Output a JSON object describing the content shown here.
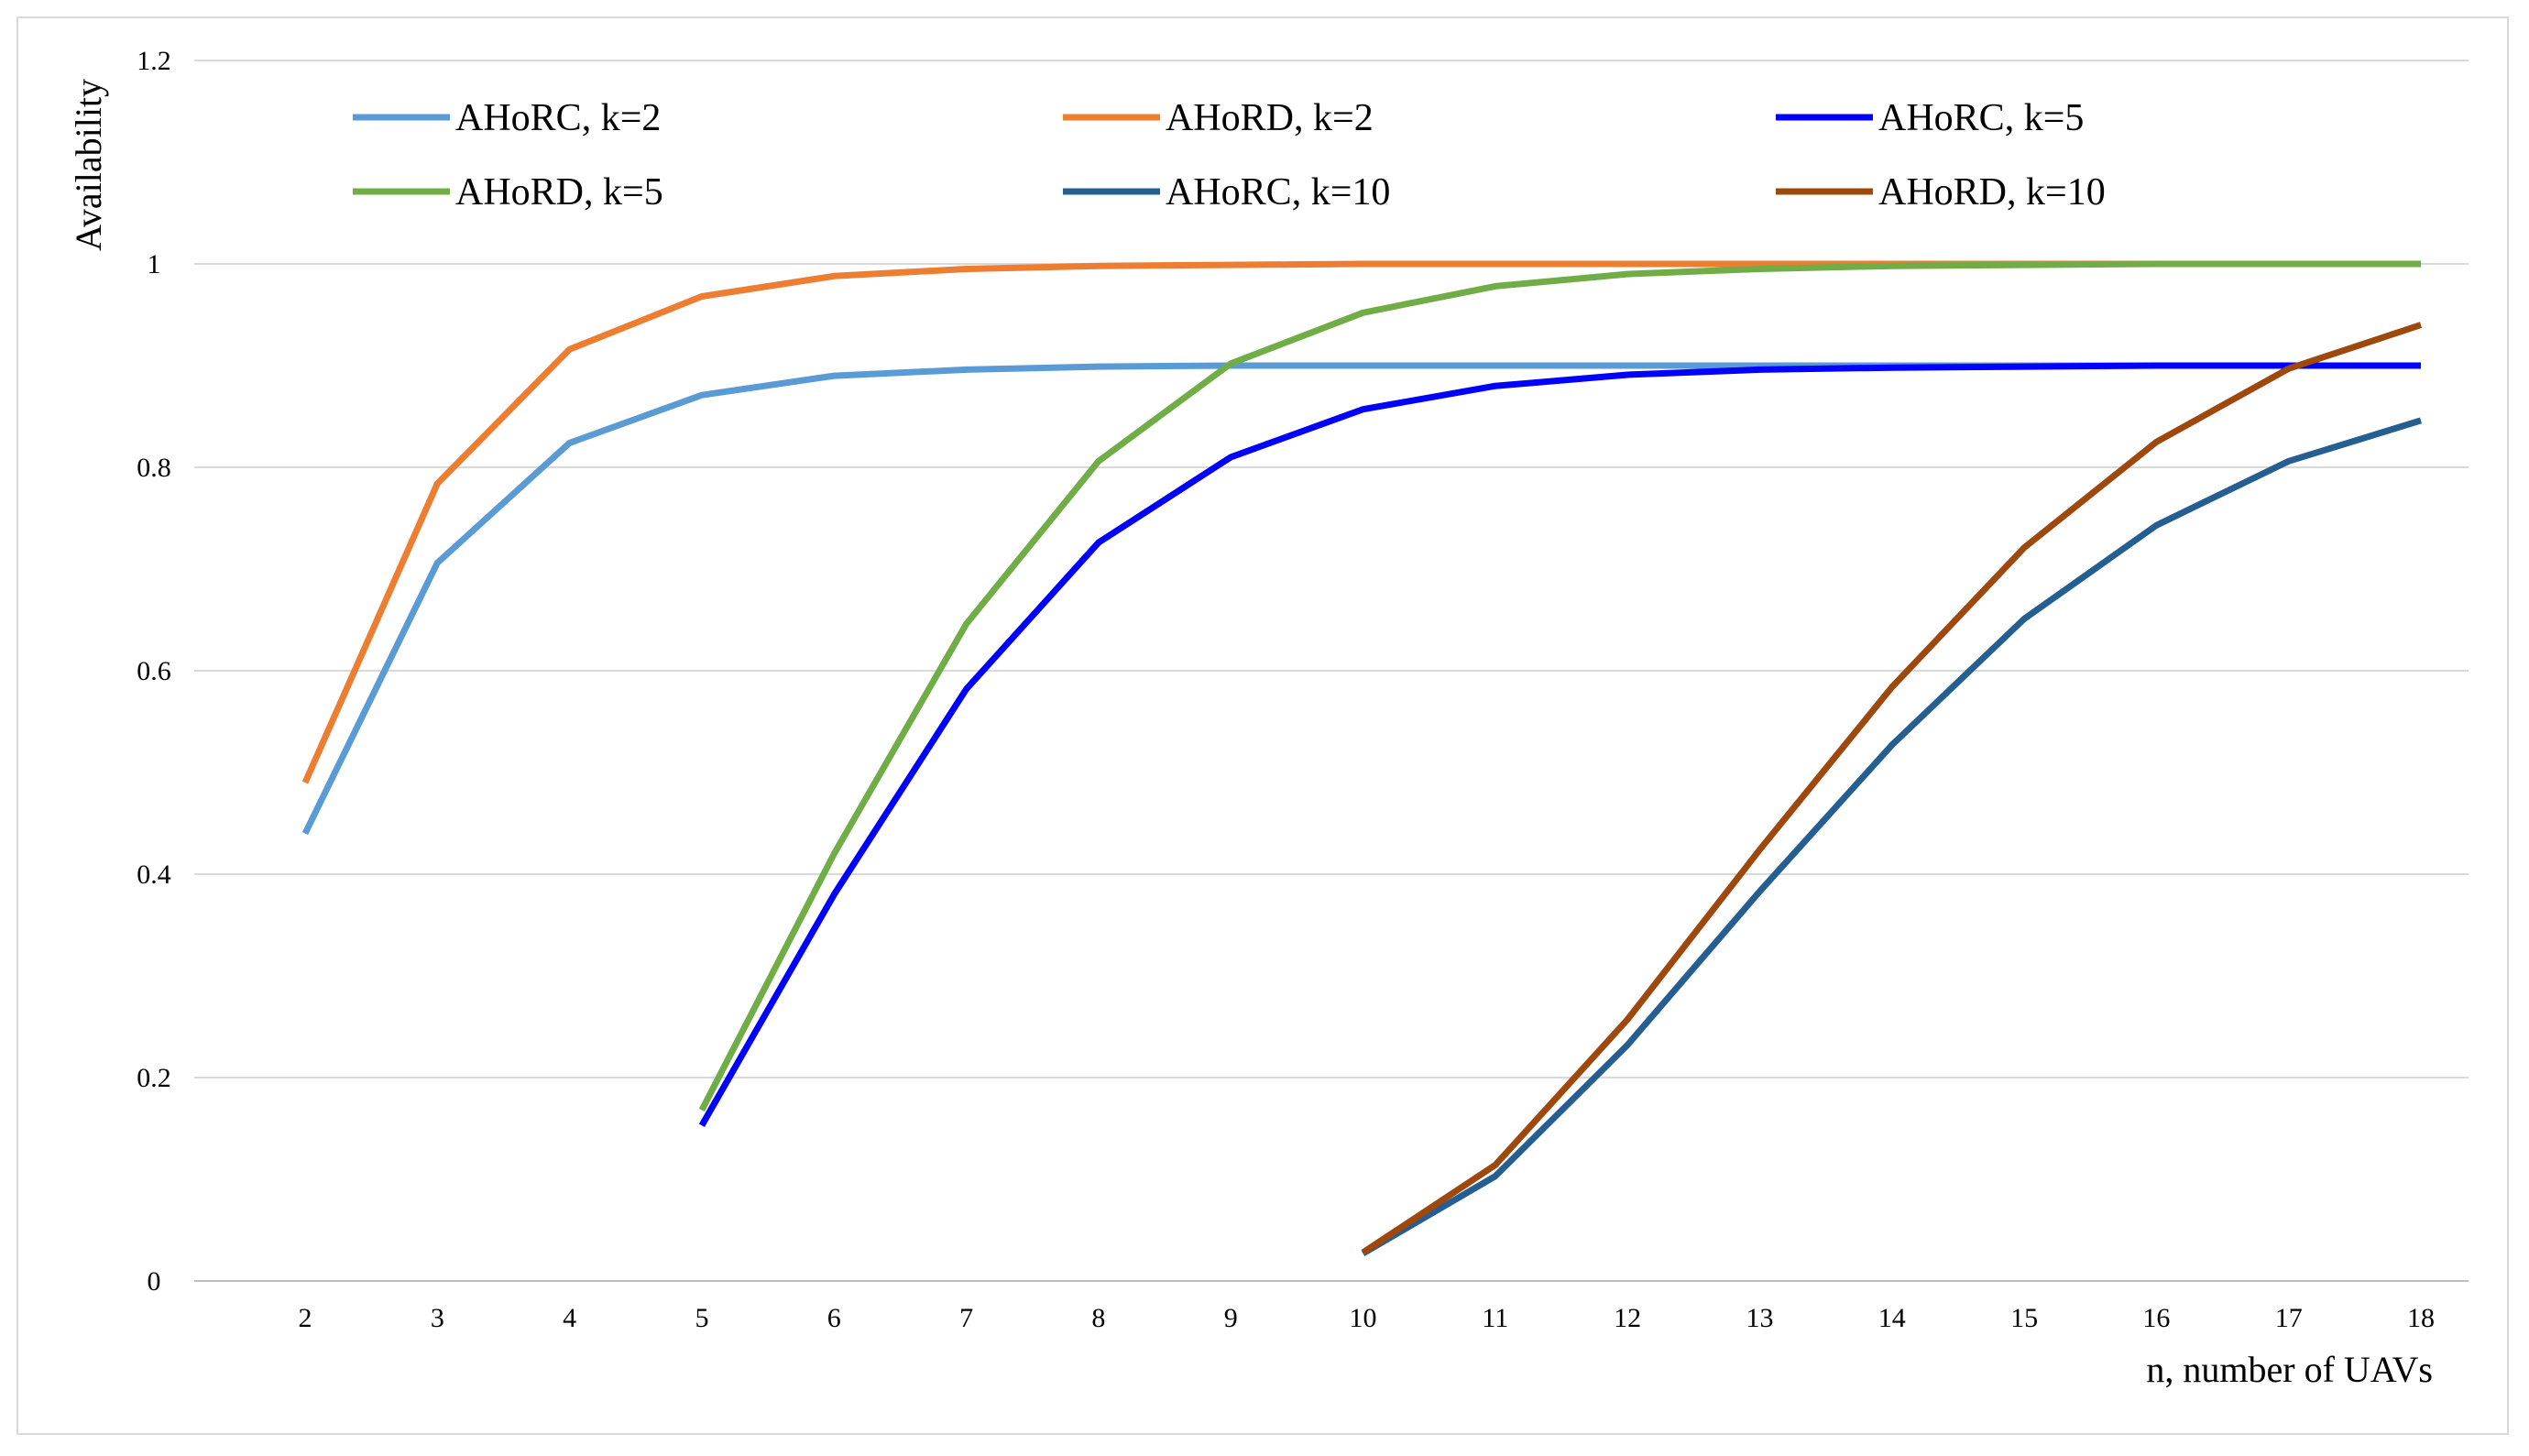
{
  "chart_data": {
    "type": "line",
    "title": "",
    "xlabel": "n, number of UAVs",
    "ylabel": "Availability",
    "x": [
      2,
      3,
      4,
      5,
      6,
      7,
      8,
      9,
      10,
      11,
      12,
      13,
      14,
      15,
      16,
      17,
      18
    ],
    "xlim": [
      2,
      18
    ],
    "ylim": [
      0,
      1.2
    ],
    "y_ticks": [
      0,
      0.2,
      0.4,
      0.6,
      0.8,
      1,
      1.2
    ],
    "grid": "horizontal",
    "legend_position": "top",
    "series": [
      {
        "name": "AHoRC, k=2",
        "color": "#5b9bd5",
        "x": [
          2,
          3,
          4,
          5,
          6,
          7,
          8,
          9,
          10,
          11,
          12,
          13,
          14,
          15,
          16,
          17,
          18
        ],
        "values": [
          0.44,
          0.706,
          0.824,
          0.871,
          0.89,
          0.896,
          0.899,
          0.9,
          0.9,
          0.9,
          0.9,
          0.9,
          0.9,
          0.9,
          0.9,
          0.9,
          0.9
        ]
      },
      {
        "name": "AHoRD, k=2",
        "color": "#ed7d31",
        "x": [
          2,
          3,
          4,
          5,
          6,
          7,
          8,
          9,
          10,
          11,
          12,
          13,
          14,
          15,
          16,
          17,
          18
        ],
        "values": [
          0.49,
          0.784,
          0.916,
          0.968,
          0.988,
          0.995,
          0.998,
          0.999,
          1.0,
          1.0,
          1.0,
          1.0,
          1.0,
          1.0,
          1.0,
          1.0,
          1.0
        ]
      },
      {
        "name": "AHoRC, k=5",
        "color": "#0000ff",
        "x": [
          5,
          6,
          7,
          8,
          9,
          10,
          11,
          12,
          13,
          14,
          15,
          16,
          17,
          18
        ],
        "values": [
          0.153,
          0.38,
          0.582,
          0.726,
          0.81,
          0.857,
          0.88,
          0.891,
          0.896,
          0.898,
          0.899,
          0.9,
          0.9,
          0.9
        ]
      },
      {
        "name": "AHoRD, k=5",
        "color": "#70ad47",
        "x": [
          5,
          6,
          7,
          8,
          9,
          10,
          11,
          12,
          13,
          14,
          15,
          16,
          17,
          18
        ],
        "values": [
          0.168,
          0.42,
          0.646,
          0.806,
          0.902,
          0.952,
          0.978,
          0.99,
          0.995,
          0.998,
          0.999,
          1.0,
          1.0,
          1.0
        ]
      },
      {
        "name": "AHoRC, k=10",
        "color": "#255e91",
        "x": [
          10,
          11,
          12,
          13,
          14,
          15,
          16,
          17,
          18
        ],
        "values": [
          0.027,
          0.103,
          0.232,
          0.383,
          0.527,
          0.651,
          0.743,
          0.806,
          0.846
        ]
      },
      {
        "name": "AHoRD, k=10",
        "color": "#9e480e",
        "x": [
          10,
          11,
          12,
          13,
          14,
          15,
          16,
          17,
          18
        ],
        "values": [
          0.028,
          0.114,
          0.257,
          0.424,
          0.584,
          0.721,
          0.825,
          0.897,
          0.94
        ]
      }
    ]
  }
}
